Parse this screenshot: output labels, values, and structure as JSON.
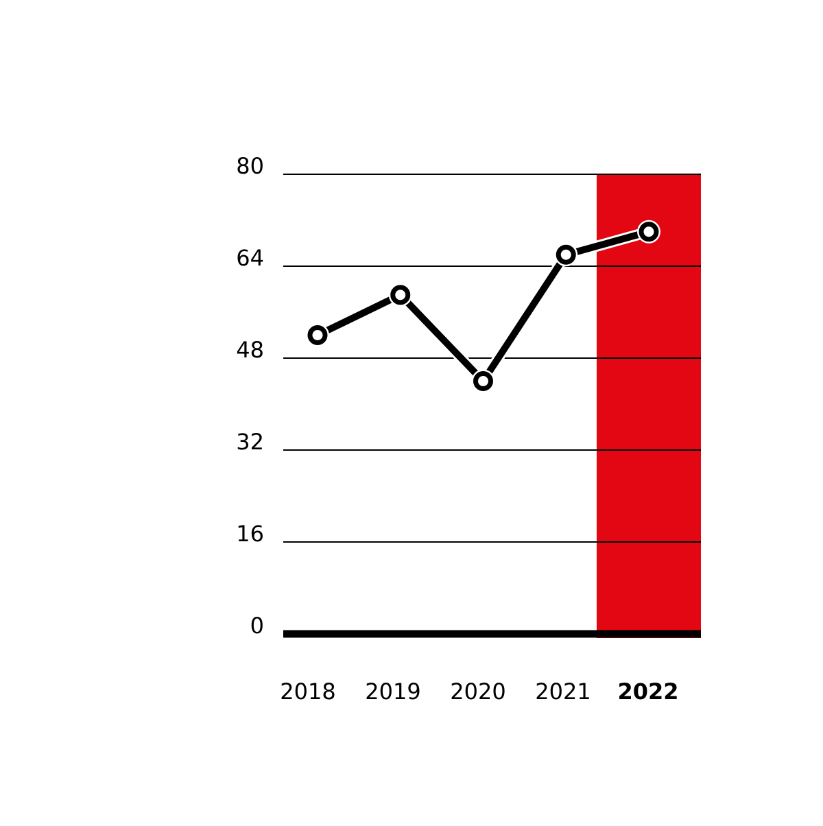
{
  "chart_data": {
    "type": "line",
    "categories": [
      "2018",
      "2019",
      "2020",
      "2021",
      "2022"
    ],
    "series": [
      {
        "color": "#000000",
        "values": [
          52,
          59,
          44,
          66,
          70
        ]
      }
    ],
    "ylim": [
      0,
      80
    ],
    "yticks": [
      0,
      16,
      32,
      48,
      64,
      80
    ],
    "grid": true,
    "highlight_index": 4,
    "highlight_color": "#e30613"
  }
}
